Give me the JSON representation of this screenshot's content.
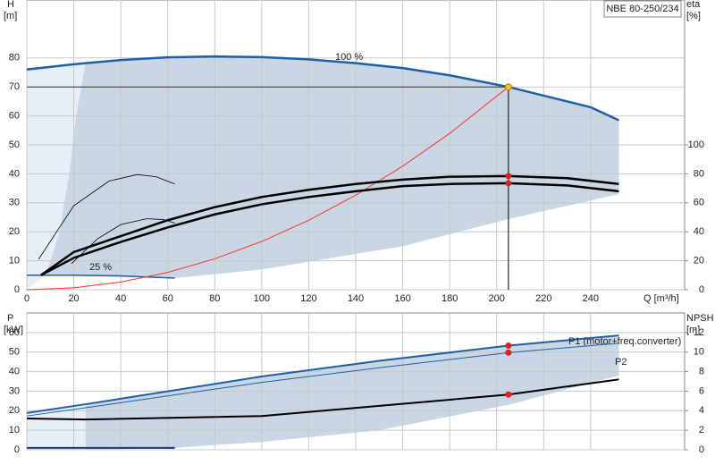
{
  "chart_data": [
    {
      "type": "line",
      "title": "NBE 80-250/234",
      "ylabel": "H",
      "yunit": "[m]",
      "y2label": "eta",
      "y2unit": "[%]",
      "xlabel": "Q [m³/h]",
      "xlim": [
        0,
        280
      ],
      "xticks": [
        0,
        20,
        40,
        60,
        80,
        100,
        120,
        140,
        160,
        180,
        200,
        220,
        240
      ],
      "ylim": [
        0,
        100
      ],
      "yticks": [
        0,
        10,
        20,
        30,
        40,
        50,
        60,
        70,
        80
      ],
      "y2lim": [
        0,
        200
      ],
      "y2ticks": [
        0,
        20,
        40,
        60,
        80,
        100
      ],
      "grid": true,
      "areas": [
        {
          "color": "#e6eef7",
          "x": [
            0,
            20,
            25,
            21,
            18,
            14,
            8,
            0
          ],
          "values": [
            76,
            77.8,
            78.3,
            60,
            40,
            20,
            5,
            0
          ]
        },
        {
          "color": "#c9d6e4",
          "x": [
            25,
            40,
            60,
            80,
            100,
            120,
            140,
            160,
            180,
            205,
            220,
            240,
            252,
            252,
            205,
            160,
            100,
            63,
            8,
            14,
            18,
            21
          ],
          "values": [
            78.3,
            79.3,
            80.2,
            80.5,
            80.3,
            79.5,
            78.2,
            76.5,
            74,
            70,
            67,
            63,
            58.5,
            33,
            24.4,
            15,
            7,
            4,
            5,
            20,
            40,
            60
          ]
        }
      ],
      "series": [
        {
          "name": "100 %",
          "color": "#1f5fa8",
          "width": 2.5,
          "x": [
            0,
            20,
            40,
            60,
            80,
            100,
            120,
            140,
            160,
            180,
            205,
            220,
            240,
            252
          ],
          "values": [
            76,
            77.8,
            79.3,
            80.2,
            80.5,
            80.3,
            79.5,
            78.2,
            76.5,
            74,
            70,
            67,
            63,
            58.5
          ]
        },
        {
          "name": "25 %",
          "color": "#1f5fa8",
          "width": 1.5,
          "x": [
            0,
            20,
            40,
            63
          ],
          "values": [
            5,
            5,
            4.8,
            4
          ]
        },
        {
          "color": "#ff3030",
          "width": 1,
          "x": [
            0,
            20,
            40,
            60,
            80,
            100,
            120,
            140,
            160,
            180,
            205
          ],
          "values": [
            0,
            0.67,
            2.66,
            5.99,
            10.66,
            16.66,
            23.98,
            32.64,
            42.64,
            53.96,
            70
          ]
        },
        {
          "color": "#000000",
          "width": 2.5,
          "axis": "y2",
          "x": [
            6,
            20,
            40,
            60,
            80,
            100,
            120,
            140,
            160,
            180,
            205,
            230,
            252
          ],
          "values": [
            10,
            26,
            37,
            48,
            57,
            64,
            69,
            73,
            76,
            78,
            78.5,
            77,
            73
          ]
        },
        {
          "color": "#000000",
          "width": 2.5,
          "axis": "y2",
          "x": [
            6,
            20,
            40,
            60,
            80,
            100,
            120,
            140,
            160,
            180,
            205,
            230,
            252
          ],
          "values": [
            10,
            22,
            33,
            43,
            52,
            59,
            64,
            68,
            71.5,
            73,
            73.5,
            72,
            68
          ]
        },
        {
          "color": "#000000",
          "width": 0.8,
          "axis": "y2",
          "x": [
            5,
            20,
            35,
            47,
            55,
            63
          ],
          "values": [
            21,
            58,
            75,
            79.5,
            78,
            73
          ]
        },
        {
          "color": "#000000",
          "width": 0.8,
          "axis": "y2",
          "x": [
            19,
            30,
            40,
            51,
            58,
            63
          ],
          "values": [
            18,
            35,
            45,
            49,
            48.5,
            46
          ]
        }
      ],
      "markers": [
        {
          "color": "#f5c518",
          "x": [
            205
          ],
          "values": [
            70
          ]
        },
        {
          "color": "#e02020",
          "axis": "y2",
          "x": [
            205,
            205
          ],
          "values": [
            78.5,
            73.5
          ]
        }
      ]
    },
    {
      "type": "line",
      "ylabel": "P",
      "yunit": "[kW]",
      "y2label": "NPSH",
      "y2unit": "[m]",
      "xlim": [
        0,
        280
      ],
      "ylim": [
        0,
        70
      ],
      "yticks": [
        0,
        10,
        20,
        30,
        40,
        50,
        60
      ],
      "y2lim": [
        0,
        14
      ],
      "y2ticks": [
        0,
        2,
        4,
        6,
        8,
        10,
        12
      ],
      "grid": true,
      "areas": [
        {
          "color": "#e6eef7",
          "x": [
            0,
            25,
            25,
            0
          ],
          "values": [
            18.8,
            23.3,
            0,
            0
          ]
        },
        {
          "color": "#c9d6e4",
          "x": [
            25,
            100,
            150,
            205,
            252,
            252,
            205,
            150,
            100,
            63,
            25
          ],
          "values": [
            23.3,
            37.5,
            45.5,
            53.3,
            58.5,
            38,
            23,
            10,
            4,
            1,
            0
          ]
        }
      ],
      "series": [
        {
          "name": "P1 (motor+freq.converter)",
          "color": "#1f5fa8",
          "width": 2,
          "x": [
            0,
            25,
            100,
            150,
            205,
            252
          ],
          "values": [
            18.8,
            23.3,
            37.5,
            45.5,
            53.3,
            58.5
          ]
        },
        {
          "name": "P2",
          "color": "#1f5fa8",
          "width": 1,
          "x": [
            0,
            25,
            100,
            150,
            205,
            252
          ],
          "values": [
            17.3,
            21.5,
            34.5,
            42,
            49.7,
            54.5
          ]
        },
        {
          "color": "#1a3a6a",
          "width": 2,
          "x": [
            0,
            63
          ],
          "values": [
            1,
            1
          ]
        },
        {
          "color": "#000000",
          "width": 2,
          "axis": "y2",
          "x": [
            0,
            25,
            100,
            150,
            205,
            252
          ],
          "values": [
            3.2,
            3.1,
            3.45,
            4.5,
            5.65,
            7.2
          ]
        }
      ],
      "markers": [
        {
          "color": "#e02020",
          "x": [
            205,
            205
          ],
          "values": [
            53.3,
            49.7
          ]
        },
        {
          "color": "#e02020",
          "axis": "y2",
          "x": [
            205
          ],
          "values": [
            5.65
          ]
        }
      ]
    }
  ]
}
